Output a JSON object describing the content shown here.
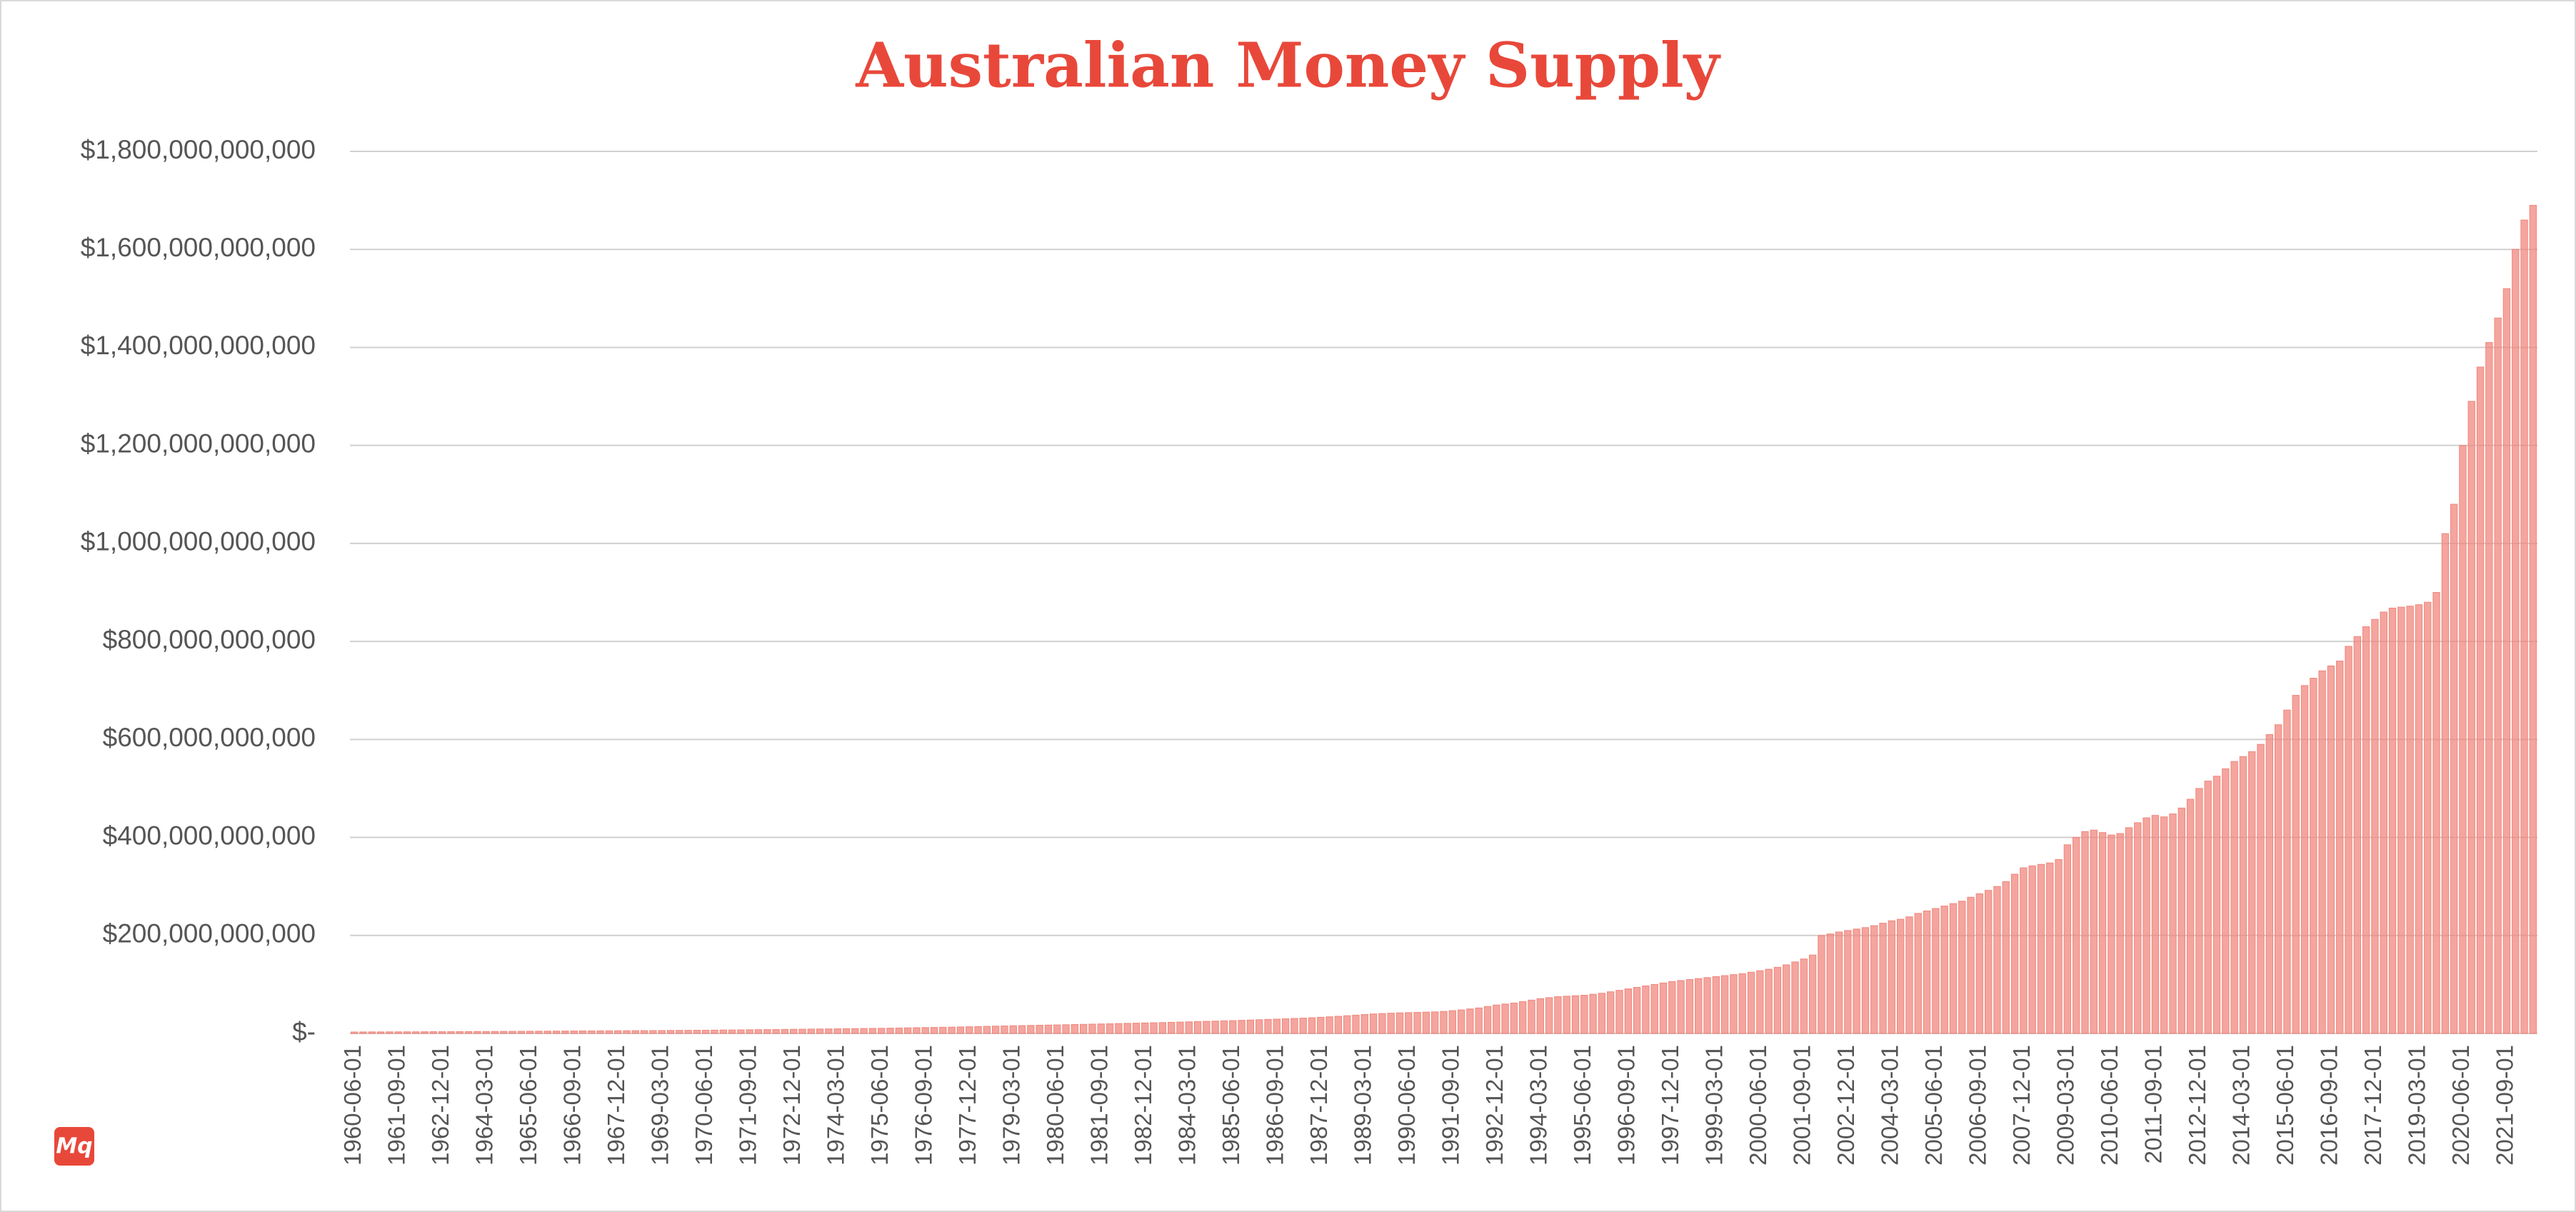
{
  "chart_data": {
    "type": "bar",
    "title": "Australian Money Supply",
    "color": "#f0877d",
    "grid": true,
    "ylim": [
      0,
      1800000000000
    ],
    "yticks": [
      {
        "value": 0,
        "label": "$-"
      },
      {
        "value": 200000000000,
        "label": "$200,000,000,000"
      },
      {
        "value": 400000000000,
        "label": "$400,000,000,000"
      },
      {
        "value": 600000000000,
        "label": "$600,000,000,000"
      },
      {
        "value": 800000000000,
        "label": "$800,000,000,000"
      },
      {
        "value": 1000000000000,
        "label": "$1,000,000,000,000"
      },
      {
        "value": 1200000000000,
        "label": "$1,200,000,000,000"
      },
      {
        "value": 1400000000000,
        "label": "$1,400,000,000,000"
      },
      {
        "value": 1600000000000,
        "label": "$1,600,000,000,000"
      },
      {
        "value": 1800000000000,
        "label": "$1,800,000,000,000"
      }
    ],
    "categories": [
      "1960-06-01",
      null,
      null,
      null,
      null,
      "1961-09-01",
      null,
      null,
      null,
      null,
      "1962-12-01",
      null,
      null,
      null,
      null,
      "1964-03-01",
      null,
      null,
      null,
      null,
      "1965-06-01",
      null,
      null,
      null,
      null,
      "1966-09-01",
      null,
      null,
      null,
      null,
      "1967-12-01",
      null,
      null,
      null,
      null,
      "1969-03-01",
      null,
      null,
      null,
      null,
      "1970-06-01",
      null,
      null,
      null,
      null,
      "1971-09-01",
      null,
      null,
      null,
      null,
      "1972-12-01",
      null,
      null,
      null,
      null,
      "1974-03-01",
      null,
      null,
      null,
      null,
      "1975-06-01",
      null,
      null,
      null,
      null,
      "1976-09-01",
      null,
      null,
      null,
      null,
      "1977-12-01",
      null,
      null,
      null,
      null,
      "1979-03-01",
      null,
      null,
      null,
      null,
      "1980-06-01",
      null,
      null,
      null,
      null,
      "1981-09-01",
      null,
      null,
      null,
      null,
      "1982-12-01",
      null,
      null,
      null,
      null,
      "1984-03-01",
      null,
      null,
      null,
      null,
      "1985-06-01",
      null,
      null,
      null,
      null,
      "1986-09-01",
      null,
      null,
      null,
      null,
      "1987-12-01",
      null,
      null,
      null,
      null,
      "1989-03-01",
      null,
      null,
      null,
      null,
      "1990-06-01",
      null,
      null,
      null,
      null,
      "1991-09-01",
      null,
      null,
      null,
      null,
      "1992-12-01",
      null,
      null,
      null,
      null,
      "1994-03-01",
      null,
      null,
      null,
      null,
      "1995-06-01",
      null,
      null,
      null,
      null,
      "1996-09-01",
      null,
      null,
      null,
      null,
      "1997-12-01",
      null,
      null,
      null,
      null,
      "1999-03-01",
      null,
      null,
      null,
      null,
      "2000-06-01",
      null,
      null,
      null,
      null,
      "2001-09-01",
      null,
      null,
      null,
      null,
      "2002-12-01",
      null,
      null,
      null,
      null,
      "2004-03-01",
      null,
      null,
      null,
      null,
      "2005-06-01",
      null,
      null,
      null,
      null,
      "2006-09-01",
      null,
      null,
      null,
      null,
      "2007-12-01",
      null,
      null,
      null,
      null,
      "2009-03-01",
      null,
      null,
      null,
      null,
      "2010-06-01",
      null,
      null,
      null,
      null,
      "2011-09-01",
      null,
      null,
      null,
      null,
      "2012-12-01",
      null,
      null,
      null,
      null,
      "2014-03-01",
      null,
      null,
      null,
      null,
      "2015-06-01",
      null,
      null,
      null,
      null,
      "2016-09-01",
      null,
      null,
      null,
      null,
      "2017-12-01",
      null,
      null,
      null,
      null,
      "2019-03-01",
      null,
      null,
      null,
      null,
      "2020-06-01",
      null,
      null,
      null,
      null,
      "2021-09-01",
      null,
      null,
      null
    ],
    "values": [
      3000000000.0,
      3100000000.0,
      3200000000.0,
      3200000000.0,
      3300000000.0,
      3300000000.0,
      3400000000.0,
      3400000000.0,
      3500000000.0,
      3600000000.0,
      3600000000.0,
      3700000000.0,
      3800000000.0,
      3900000000.0,
      4000000000.0,
      4000000000.0,
      4100000000.0,
      4200000000.0,
      4300000000.0,
      4400000000.0,
      4500000000.0,
      4600000000.0,
      4700000000.0,
      4800000000.0,
      4900000000.0,
      5000000000.0,
      5100000000.0,
      5200000000.0,
      5300000000.0,
      5400000000.0,
      5500000000.0,
      5600000000.0,
      5700000000.0,
      5800000000.0,
      5900000000.0,
      6000000000.0,
      6200000000.0,
      6300000000.0,
      6400000000.0,
      6500000000.0,
      6600000000.0,
      6800000000.0,
      7000000000.0,
      7100000000.0,
      7300000000.0,
      7500000000.0,
      7700000000.0,
      7900000000.0,
      8100000000.0,
      8300000000.0,
      8500000000.0,
      8700000000.0,
      8900000000.0,
      9100000000.0,
      9300000000.0,
      9500000000.0,
      9700000000.0,
      9900000000.0,
      10100000000.0,
      10300000000.0,
      10500000000.0,
      10800000000.0,
      11100000000.0,
      11400000000.0,
      11700000000.0,
      12000000000.0,
      12300000000.0,
      12600000000.0,
      12900000000.0,
      13300000000.0,
      13700000000.0,
      14100000000.0,
      14500000000.0,
      14900000000.0,
      15300000000.0,
      15700000000.0,
      16000000000.0,
      16400000000.0,
      16800000000.0,
      17100000000.0,
      17400000000.0,
      17800000000.0,
      18200000000.0,
      18600000000.0,
      19000000000.0,
      19400000000.0,
      19800000000.0,
      20200000000.0,
      20600000000.0,
      21000000000.0,
      21400000000.0,
      21800000000.0,
      22200000000.0,
      22700000000.0,
      23200000000.0,
      23700000000.0,
      24200000000.0,
      24700000000.0,
      25200000000.0,
      25700000000.0,
      26200000000.0,
      26800000000.0,
      27400000000.0,
      28000000000.0,
      28600000000.0,
      29200000000.0,
      29900000000.0,
      30600000000.0,
      31300000000.0,
      32100000000.0,
      33000000000.0,
      34000000000.0,
      35000000000.0,
      36200000000.0,
      37400000000.0,
      38600000000.0,
      39800000000.0,
      40600000000.0,
      41400000000.0,
      42000000000.0,
      42500000000.0,
      43000000000.0,
      43500000000.0,
      44000000000.0,
      45000000000.0,
      46500000000.0,
      48000000000.0,
      50000000000.0,
      52000000000.0,
      55000000000.0,
      58000000000.0,
      60000000000.0,
      62000000000.0,
      65000000000.0,
      68000000000.0,
      71000000000.0,
      73000000000.0,
      75000000000.0,
      76000000000.0,
      77000000000.0,
      78000000000.0,
      80000000000.0,
      82000000000.0,
      85000000000.0,
      88000000000.0,
      91000000000.0,
      94000000000.0,
      97000000000.0,
      100000000000.0,
      103000000000.0,
      106000000000.0,
      108000000000.0,
      110000000000.0,
      112000000000.0,
      114000000000.0,
      116000000000.0,
      118000000000.0,
      120000000000.0,
      122000000000.0,
      125000000000.0,
      128000000000.0,
      131000000000.0,
      135000000000.0,
      140000000000.0,
      146000000000.0,
      152000000000.0,
      160000000000.0,
      200000000000.0,
      203000000000.0,
      207000000000.0,
      210000000000.0,
      213000000000.0,
      216000000000.0,
      220000000000.0,
      225000000000.0,
      230000000000.0,
      233000000000.0,
      238000000000.0,
      245000000000.0,
      250000000000.0,
      255000000000.0,
      260000000000.0,
      265000000000.0,
      270000000000.0,
      278000000000.0,
      285000000000.0,
      292000000000.0,
      300000000000.0,
      310000000000.0,
      325000000000.0,
      338000000000.0,
      342000000000.0,
      345000000000.0,
      348000000000.0,
      355000000000.0,
      385000000000.0,
      400000000000.0,
      412000000000.0,
      415000000000.0,
      410000000000.0,
      405000000000.0,
      408000000000.0,
      420000000000.0,
      430000000000.0,
      440000000000.0,
      445000000000.0,
      442000000000.0,
      448000000000.0,
      460000000000.0,
      478000000000.0,
      500000000000.0,
      515000000000.0,
      525000000000.0,
      540000000000.0,
      555000000000.0,
      565000000000.0,
      575000000000.0,
      590000000000.0,
      610000000000.0,
      630000000000.0,
      660000000000.0,
      690000000000.0,
      710000000000.0,
      725000000000.0,
      740000000000.0,
      750000000000.0,
      760000000000.0,
      790000000000.0,
      810000000000.0,
      830000000000.0,
      845000000000.0,
      860000000000.0,
      868000000000.0,
      870000000000.0,
      872000000000.0,
      875000000000.0,
      880000000000.0,
      900000000000.0,
      1020000000000.0,
      1080000000000.0,
      1200000000000.0,
      1290000000000.0,
      1360000000000.0,
      1410000000000.0,
      1460000000000.0,
      1520000000000.0,
      1600000000000.0,
      1660000000000.0,
      1690000000000.0
    ]
  },
  "logo": "Mq"
}
